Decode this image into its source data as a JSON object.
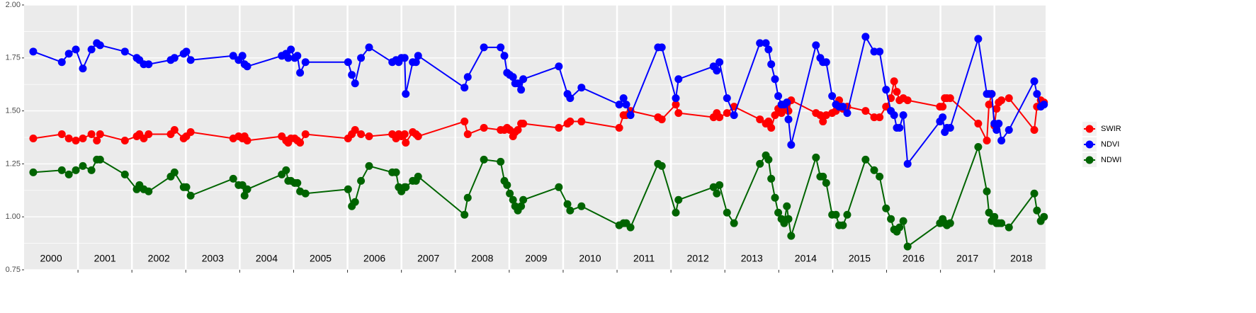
{
  "chart_data": {
    "type": "line",
    "x": [
      2000.17,
      2000.7,
      2000.83,
      2000.96,
      2001.09,
      2001.25,
      2001.35,
      2001.41,
      2001.87,
      2002.09,
      2002.14,
      2002.22,
      2002.31,
      2002.72,
      2002.79,
      2002.96,
      2003.01,
      2003.09,
      2003.88,
      2003.98,
      2004.05,
      2004.09,
      2004.14,
      2004.78,
      2004.86,
      2004.9,
      2004.95,
      2005.02,
      2005.07,
      2005.12,
      2005.22,
      2006.01,
      2006.08,
      2006.14,
      2006.25,
      2006.4,
      2006.83,
      2006.9,
      2006.95,
      2007.0,
      2007.06,
      2007.08,
      2007.21,
      2007.27,
      2007.31,
      2008.17,
      2008.23,
      2008.53,
      2008.84,
      2008.91,
      2008.96,
      2009.01,
      2009.07,
      2009.11,
      2009.16,
      2009.22,
      2009.26,
      2009.92,
      2010.08,
      2010.13,
      2010.34,
      2011.04,
      2011.12,
      2011.17,
      2011.25,
      2011.76,
      2011.83,
      2012.09,
      2012.14,
      2012.79,
      2012.85,
      2012.9,
      2013.04,
      2013.17,
      2013.65,
      2013.76,
      2013.81,
      2013.86,
      2013.93,
      2013.99,
      2014.05,
      2014.1,
      2014.15,
      2014.18,
      2014.23,
      2014.69,
      2014.77,
      2014.82,
      2014.88,
      2014.99,
      2015.06,
      2015.12,
      2015.19,
      2015.27,
      2015.61,
      2015.77,
      2015.87,
      2015.99,
      2016.08,
      2016.14,
      2016.19,
      2016.24,
      2016.31,
      2016.39,
      2016.99,
      2017.04,
      2017.08,
      2017.12,
      2017.18,
      2017.7,
      2017.86,
      2017.9,
      2017.95,
      2018.0,
      2018.04,
      2018.08,
      2018.13,
      2018.27,
      2018.74,
      2018.79,
      2018.86,
      2018.92
    ],
    "series": [
      {
        "name": "SWIR",
        "color": "#ff0000",
        "values": [
          1.37,
          1.39,
          1.37,
          1.36,
          1.37,
          1.39,
          1.36,
          1.39,
          1.36,
          1.38,
          1.39,
          1.37,
          1.39,
          1.39,
          1.41,
          1.37,
          1.38,
          1.4,
          1.37,
          1.38,
          1.37,
          1.38,
          1.36,
          1.38,
          1.36,
          1.35,
          1.37,
          1.37,
          1.36,
          1.35,
          1.39,
          1.37,
          1.39,
          1.41,
          1.39,
          1.38,
          1.39,
          1.37,
          1.39,
          1.38,
          1.39,
          1.35,
          1.4,
          1.39,
          1.38,
          1.45,
          1.39,
          1.42,
          1.41,
          1.41,
          1.42,
          1.41,
          1.38,
          1.4,
          1.41,
          1.44,
          1.44,
          1.42,
          1.44,
          1.45,
          1.45,
          1.42,
          1.48,
          1.48,
          1.5,
          1.47,
          1.46,
          1.53,
          1.49,
          1.47,
          1.49,
          1.47,
          1.49,
          1.52,
          1.46,
          1.44,
          1.45,
          1.42,
          1.48,
          1.51,
          1.49,
          1.51,
          1.51,
          1.5,
          1.55,
          1.49,
          1.48,
          1.45,
          1.48,
          1.49,
          1.5,
          1.55,
          1.51,
          1.52,
          1.5,
          1.47,
          1.47,
          1.52,
          1.56,
          1.64,
          1.59,
          1.55,
          1.56,
          1.55,
          1.52,
          1.52,
          1.56,
          1.56,
          1.56,
          1.44,
          1.36,
          1.53,
          1.58,
          1.43,
          1.51,
          1.54,
          1.55,
          1.56,
          1.41,
          1.52,
          1.55,
          1.54
        ]
      },
      {
        "name": "NDVI",
        "color": "#0000ff",
        "values": [
          1.78,
          1.73,
          1.77,
          1.79,
          1.7,
          1.79,
          1.82,
          1.81,
          1.78,
          1.75,
          1.74,
          1.72,
          1.72,
          1.74,
          1.75,
          1.77,
          1.78,
          1.74,
          1.76,
          1.74,
          1.76,
          1.72,
          1.71,
          1.76,
          1.77,
          1.75,
          1.79,
          1.75,
          1.76,
          1.68,
          1.73,
          1.73,
          1.67,
          1.63,
          1.75,
          1.8,
          1.73,
          1.74,
          1.73,
          1.75,
          1.75,
          1.58,
          1.73,
          1.73,
          1.76,
          1.61,
          1.66,
          1.8,
          1.8,
          1.76,
          1.68,
          1.67,
          1.66,
          1.63,
          1.63,
          1.6,
          1.65,
          1.71,
          1.58,
          1.56,
          1.61,
          1.53,
          1.56,
          1.53,
          1.48,
          1.8,
          1.8,
          1.56,
          1.65,
          1.71,
          1.69,
          1.73,
          1.56,
          1.48,
          1.82,
          1.82,
          1.79,
          1.72,
          1.65,
          1.57,
          1.53,
          1.53,
          1.54,
          1.46,
          1.34,
          1.81,
          1.75,
          1.73,
          1.73,
          1.57,
          1.53,
          1.52,
          1.52,
          1.49,
          1.85,
          1.78,
          1.78,
          1.6,
          1.5,
          1.48,
          1.42,
          1.42,
          1.48,
          1.25,
          1.45,
          1.47,
          1.4,
          1.42,
          1.42,
          1.84,
          1.58,
          1.58,
          1.58,
          1.44,
          1.41,
          1.44,
          1.36,
          1.41,
          1.64,
          1.58,
          1.52,
          1.53
        ]
      },
      {
        "name": "NDWI",
        "color": "#006400",
        "values": [
          1.21,
          1.22,
          1.2,
          1.22,
          1.24,
          1.22,
          1.27,
          1.27,
          1.2,
          1.13,
          1.15,
          1.13,
          1.12,
          1.19,
          1.21,
          1.14,
          1.14,
          1.1,
          1.18,
          1.15,
          1.15,
          1.1,
          1.13,
          1.2,
          1.22,
          1.17,
          1.17,
          1.16,
          1.16,
          1.12,
          1.11,
          1.13,
          1.05,
          1.07,
          1.17,
          1.24,
          1.21,
          1.21,
          1.14,
          1.12,
          1.14,
          1.14,
          1.17,
          1.17,
          1.19,
          1.01,
          1.09,
          1.27,
          1.26,
          1.17,
          1.15,
          1.11,
          1.08,
          1.05,
          1.03,
          1.05,
          1.08,
          1.14,
          1.06,
          1.03,
          1.05,
          0.96,
          0.97,
          0.97,
          0.95,
          1.25,
          1.24,
          1.02,
          1.08,
          1.14,
          1.11,
          1.15,
          1.02,
          0.97,
          1.25,
          1.29,
          1.27,
          1.18,
          1.09,
          1.02,
          0.99,
          0.97,
          1.05,
          0.99,
          0.91,
          1.28,
          1.19,
          1.19,
          1.16,
          1.01,
          1.01,
          0.96,
          0.96,
          1.01,
          1.27,
          1.22,
          1.19,
          1.04,
          0.99,
          0.94,
          0.93,
          0.95,
          0.98,
          0.86,
          0.97,
          0.99,
          0.97,
          0.96,
          0.97,
          1.33,
          1.12,
          1.02,
          0.98,
          1.0,
          0.97,
          0.97,
          0.97,
          0.95,
          1.11,
          1.03,
          0.98,
          1.0
        ]
      }
    ],
    "xlim": [
      2000,
      2018.95
    ],
    "xticks": [
      2001,
      2002,
      2003,
      2004,
      2005,
      2006,
      2007,
      2008,
      2009,
      2010,
      2011,
      2012,
      2013,
      2014,
      2015,
      2016,
      2017,
      2018
    ],
    "year_labels": [
      2000,
      2001,
      2002,
      2003,
      2004,
      2005,
      2006,
      2007,
      2008,
      2009,
      2010,
      2011,
      2012,
      2013,
      2014,
      2015,
      2016,
      2017,
      2018
    ],
    "ylim": [
      0.75,
      2.0
    ],
    "yticks": [
      {
        "value": 0.75,
        "label": "0.75"
      },
      {
        "value": 1,
        "label": "1.00"
      },
      {
        "value": 1.25,
        "label": "1.25"
      },
      {
        "value": 1.5,
        "label": "1.50"
      },
      {
        "value": 1.75,
        "label": "1.75"
      },
      {
        "value": 2,
        "label": "2.00"
      }
    ],
    "minor_yticks": [
      0.875,
      1.125,
      1.375,
      1.625,
      1.875
    ],
    "grid": true,
    "legend": "right"
  }
}
